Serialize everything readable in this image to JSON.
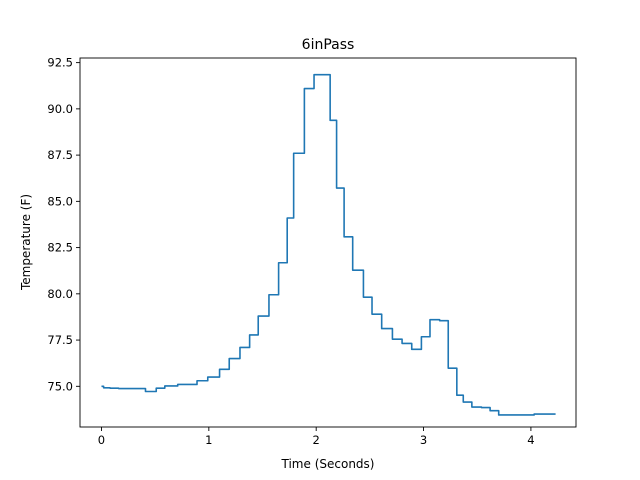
{
  "chart_data": {
    "type": "line",
    "title": "6inPass",
    "xlabel": "Time (Seconds)",
    "ylabel": "Temperature (F)",
    "xlim": [
      -0.2,
      4.42
    ],
    "ylim": [
      72.8,
      92.75
    ],
    "xticks": [
      0,
      1,
      2,
      3,
      4
    ],
    "xtick_labels": [
      "0",
      "1",
      "2",
      "3",
      "4"
    ],
    "yticks": [
      75.0,
      77.5,
      80.0,
      82.5,
      85.0,
      87.5,
      90.0,
      92.5
    ],
    "ytick_labels": [
      "75.0",
      "77.5",
      "80.0",
      "82.5",
      "85.0",
      "87.5",
      "90.0",
      "92.5"
    ],
    "grid": false,
    "line_color": "#1f77b4",
    "series": [
      {
        "x": [
          0.0,
          0.02,
          0.02,
          0.08,
          0.08,
          0.16,
          0.16,
          0.41,
          0.41,
          0.51,
          0.51,
          0.59,
          0.59,
          0.71,
          0.71,
          0.89,
          0.89,
          0.99,
          0.99,
          1.1,
          1.1,
          1.19,
          1.19,
          1.29,
          1.29,
          1.38,
          1.38,
          1.46,
          1.46,
          1.56,
          1.56,
          1.65,
          1.65,
          1.73,
          1.73,
          1.79,
          1.79,
          1.89,
          1.89,
          1.98,
          1.98,
          2.05,
          2.05,
          2.13,
          2.13,
          2.19,
          2.19,
          2.26,
          2.26,
          2.34,
          2.34,
          2.44,
          2.44,
          2.52,
          2.52,
          2.61,
          2.61,
          2.71,
          2.71,
          2.8,
          2.8,
          2.89,
          2.89,
          2.98,
          2.98,
          3.06,
          3.06,
          3.15,
          3.15,
          3.23,
          3.23,
          3.31,
          3.31,
          3.37,
          3.37,
          3.45,
          3.45,
          3.54,
          3.54,
          3.62,
          3.62,
          3.7,
          3.7,
          3.8,
          3.8,
          3.96,
          3.96,
          4.03,
          4.03,
          4.23
        ],
        "y": [
          75.0,
          75.0,
          74.92,
          74.92,
          74.9,
          74.9,
          74.88,
          74.88,
          74.72,
          74.72,
          74.9,
          74.9,
          75.02,
          75.02,
          75.1,
          75.1,
          75.3,
          75.3,
          75.5,
          75.5,
          75.92,
          75.92,
          76.5,
          76.5,
          77.1,
          77.1,
          77.78,
          77.78,
          78.8,
          78.8,
          79.95,
          79.95,
          81.68,
          81.68,
          84.1,
          84.1,
          87.6,
          87.6,
          91.1,
          91.1,
          91.85,
          91.85,
          91.85,
          91.85,
          89.38,
          89.38,
          85.72,
          85.72,
          83.08,
          83.08,
          81.28,
          81.28,
          79.82,
          79.82,
          78.9,
          78.9,
          78.12,
          78.12,
          77.55,
          77.55,
          77.32,
          77.32,
          77.0,
          77.0,
          77.68,
          77.68,
          78.6,
          78.6,
          78.55,
          78.55,
          75.98,
          75.98,
          74.52,
          74.52,
          74.15,
          74.15,
          73.88,
          73.88,
          73.85,
          73.85,
          73.68,
          73.68,
          73.45,
          73.45,
          73.45,
          73.45,
          73.45,
          73.45,
          73.5,
          73.5
        ]
      }
    ]
  }
}
